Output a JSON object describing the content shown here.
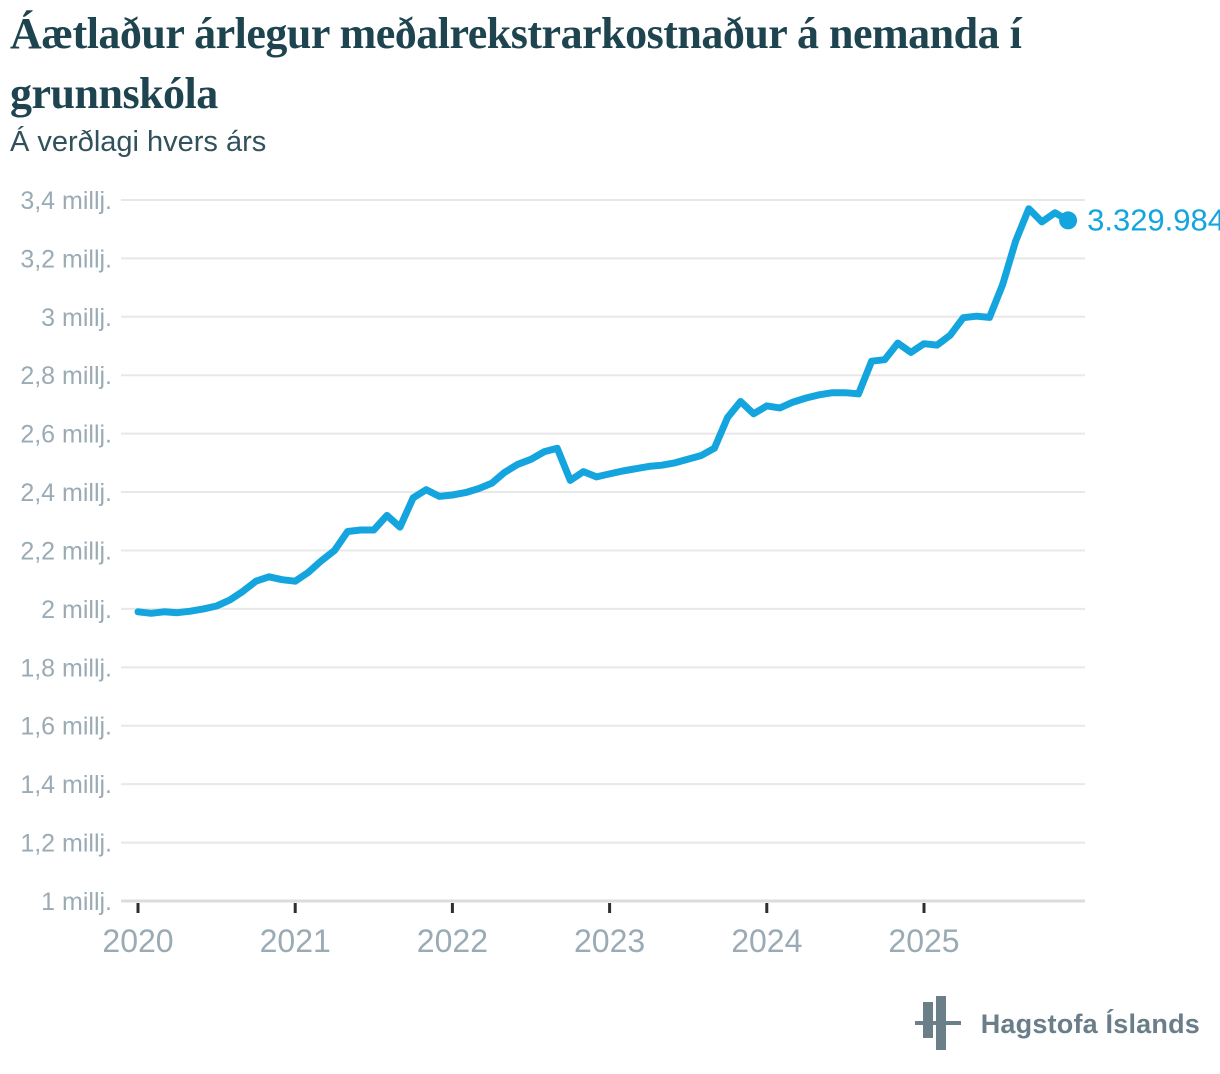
{
  "header": {
    "title": "Áætlaður árlegur meðalrekstrarkostnaður á nemanda í\ngrunnskóla",
    "subtitle": "Á verðlagi hvers árs"
  },
  "footer": {
    "brand": "Hagstofa Íslands"
  },
  "colors": {
    "line": "#14a5de",
    "title": "#1e4450",
    "subtitle": "#31515c",
    "axis_label": "#9aabb5",
    "grid": "#e8e8e8",
    "axis_line": "#dcdcdc",
    "tick": "#2f2f2f",
    "brand": "#697e88"
  },
  "chart_data": {
    "type": "line",
    "title": "Áætlaður árlegur meðalrekstrarkostnaður á nemanda í grunnskóla",
    "subtitle": "Á verðlagi hvers árs",
    "unit": "millj. kr. (ISK millions), monthly series",
    "x_start_year": 2020,
    "points_per_year": 12,
    "x_tick_labels": [
      "2020",
      "2021",
      "2022",
      "2023",
      "2024",
      "2025"
    ],
    "y_tick_values": [
      3.4,
      3.2,
      3.0,
      2.8,
      2.6,
      2.4,
      2.2,
      2.0,
      1.8,
      1.6,
      1.4,
      1.2,
      1.0
    ],
    "y_tick_labels": [
      "3,4 millj.",
      "3,2 millj.",
      "3 millj.",
      "2,8 millj.",
      "2,6 millj.",
      "2,4 millj.",
      "2,2 millj.",
      "2 millj.",
      "1,8 millj.",
      "1,6 millj.",
      "1,4 millj.",
      "1,2 millj.",
      "1 millj."
    ],
    "ylim": [
      1.0,
      3.4
    ],
    "grid": true,
    "values": [
      1.99,
      1.985,
      1.99,
      1.987,
      1.992,
      2.0,
      2.01,
      2.03,
      2.06,
      2.095,
      2.11,
      2.1,
      2.095,
      2.125,
      2.165,
      2.2,
      2.265,
      2.27,
      2.27,
      2.32,
      2.28,
      2.38,
      2.408,
      2.385,
      2.39,
      2.398,
      2.412,
      2.43,
      2.468,
      2.495,
      2.512,
      2.538,
      2.55,
      2.44,
      2.47,
      2.452,
      2.462,
      2.472,
      2.48,
      2.488,
      2.492,
      2.5,
      2.513,
      2.525,
      2.55,
      2.655,
      2.71,
      2.668,
      2.695,
      2.688,
      2.708,
      2.722,
      2.733,
      2.74,
      2.74,
      2.736,
      2.848,
      2.853,
      2.91,
      2.878,
      2.908,
      2.903,
      2.937,
      2.997,
      3.002,
      2.998,
      3.11,
      3.26,
      3.37,
      3.325,
      3.356,
      3.33
    ],
    "last_value": 3329984,
    "end_label": "3.329.984"
  }
}
